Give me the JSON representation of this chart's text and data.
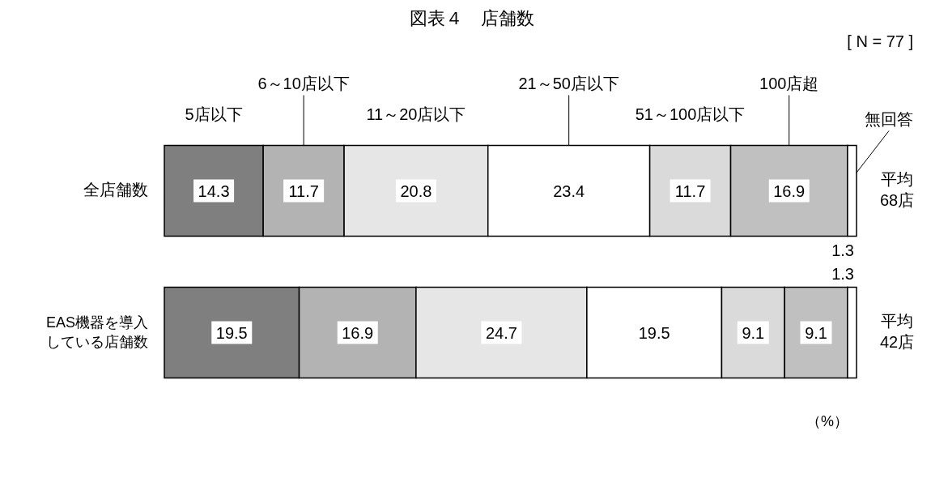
{
  "chart_data": {
    "type": "bar",
    "orientation": "horizontal",
    "stacked": true,
    "data_labels": true,
    "title": "図表４　店舗数",
    "categories": [
      "全店舗数",
      "EAS機器を導入している店舗数"
    ],
    "series": [
      {
        "name": "5店以下",
        "color": "#7f7f7f",
        "values": [
          14.3,
          19.5
        ]
      },
      {
        "name": "6～10店以下",
        "color": "#b3b3b3",
        "values": [
          11.7,
          16.9
        ]
      },
      {
        "name": "11～20店以下",
        "color": "#e6e6e6",
        "values": [
          20.8,
          24.7
        ]
      },
      {
        "name": "21～50店以下",
        "color": "#ffffff",
        "values": [
          23.4,
          19.5
        ]
      },
      {
        "name": "51～100店以下",
        "color": "#dadada",
        "values": [
          11.7,
          9.1
        ]
      },
      {
        "name": "100店超",
        "color": "#c0c0c0",
        "values": [
          16.9,
          9.1
        ]
      },
      {
        "name": "無回答",
        "color": "#ffffff",
        "values": [
          1.3,
          1.3
        ]
      }
    ],
    "annotations": [
      "[ N = 77 ]",
      "（%）",
      "平均\n68店",
      "平均\n42店"
    ]
  }
}
